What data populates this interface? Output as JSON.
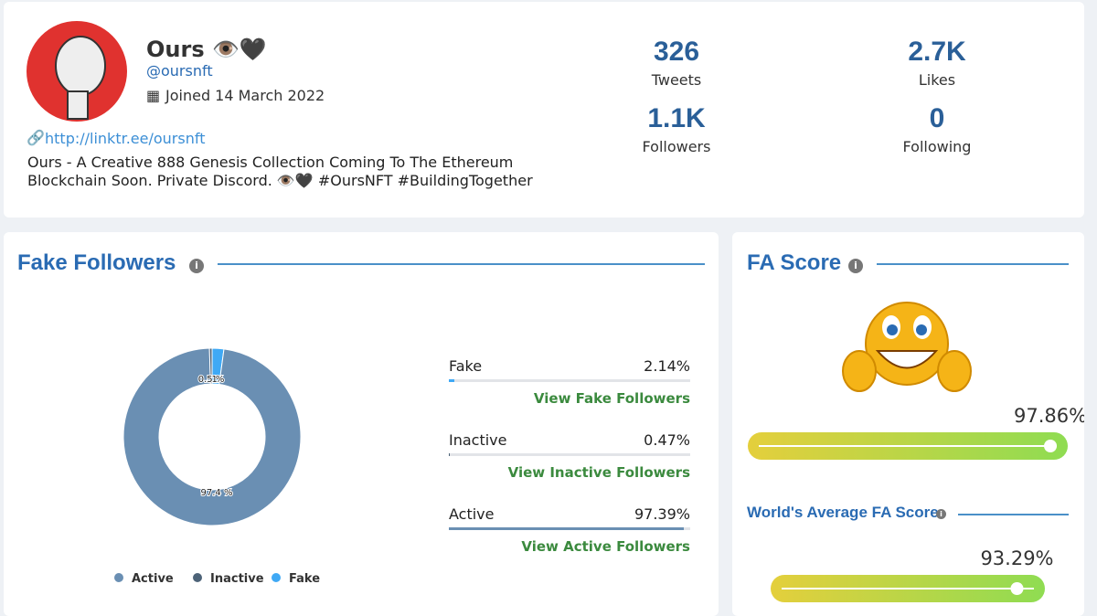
{
  "profile": {
    "name": "Ours 👁️🖤",
    "handle": "@oursnft",
    "joined": "Joined 14 March 2022",
    "link": "http://linktr.ee/oursnft",
    "bio": [
      "Ours - A Creative 888 Genesis Collection Coming To The Ethereum",
      "Blockchain Soon. Private Discord. 👁️🖤 #OursNFT #BuildingTogether"
    ]
  },
  "stats": [
    {
      "value": "326",
      "label": "Tweets"
    },
    {
      "value": "2.7K",
      "label": "Likes"
    },
    {
      "value": "1.1K",
      "label": "Followers"
    },
    {
      "value": "0",
      "label": "Following"
    }
  ],
  "fake_followers": {
    "title": "Fake Followers",
    "rows": [
      {
        "label": "Fake",
        "value": "2.14%",
        "link": "View Fake Followers"
      },
      {
        "label": "Inactive",
        "value": "0.47%",
        "link": "View Inactive Followers"
      },
      {
        "label": "Active",
        "value": "97.39%",
        "link": "View Active Followers"
      }
    ]
  },
  "chart_data": {
    "type": "pie",
    "categories": [
      "Active",
      "Inactive",
      "Fake"
    ],
    "values": [
      97.39,
      0.47,
      2.14
    ],
    "value_labels": [
      "97.4 %",
      "0.5 %",
      "2.1 %"
    ],
    "colors": [
      "#6a8fb3",
      "#4d6378",
      "#3fa9f5"
    ],
    "donut": true
  },
  "fa_score": {
    "title": "FA Score",
    "value": 97.86,
    "label": "97.86%"
  },
  "world_average": {
    "title": "World's Average FA Score",
    "value": 93.29,
    "label": "93.29%"
  }
}
